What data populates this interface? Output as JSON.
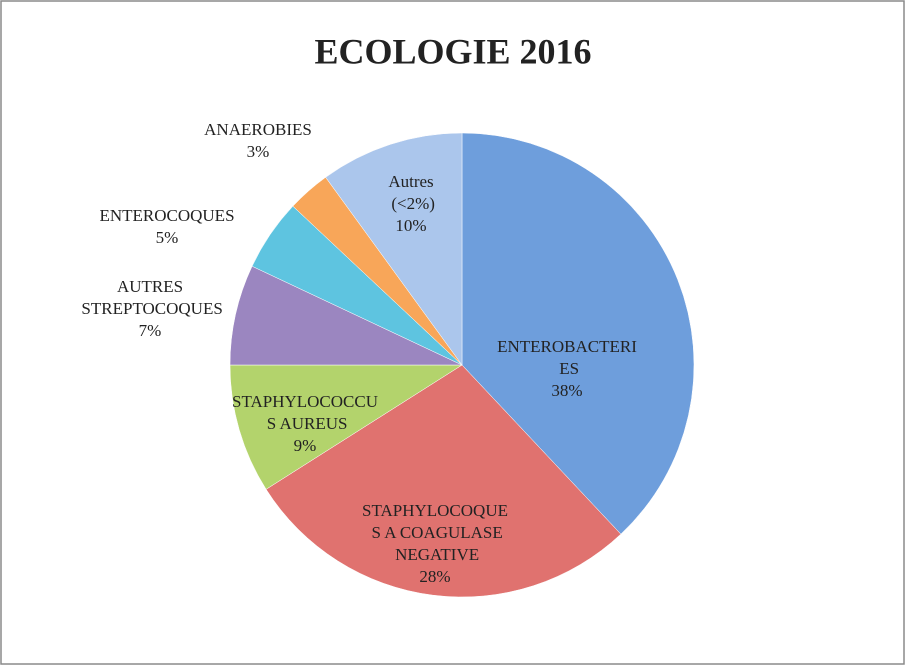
{
  "chart_data": {
    "type": "pie",
    "title": "ECOLOGIE 2016",
    "categories": [
      "ENTEROBACTERIES",
      "STAPHYLOCOQUES A COAGULASE NEGATIVE",
      "STAPHYLOCOCCUS AUREUS",
      "AUTRES STREPTOCOQUES",
      "ENTEROCOQUES",
      "ANAEROBIES",
      "Autres (<2%)"
    ],
    "values": [
      38,
      28,
      9,
      7,
      5,
      3,
      10
    ],
    "value_labels": [
      "38%",
      "28%",
      "9%",
      "7%",
      "5%",
      "3%",
      "10%"
    ],
    "colors": [
      "#6e9edc",
      "#e0726f",
      "#b3d36c",
      "#9b86c0",
      "#5ec4e0",
      "#f8a659",
      "#abc6ec"
    ]
  }
}
